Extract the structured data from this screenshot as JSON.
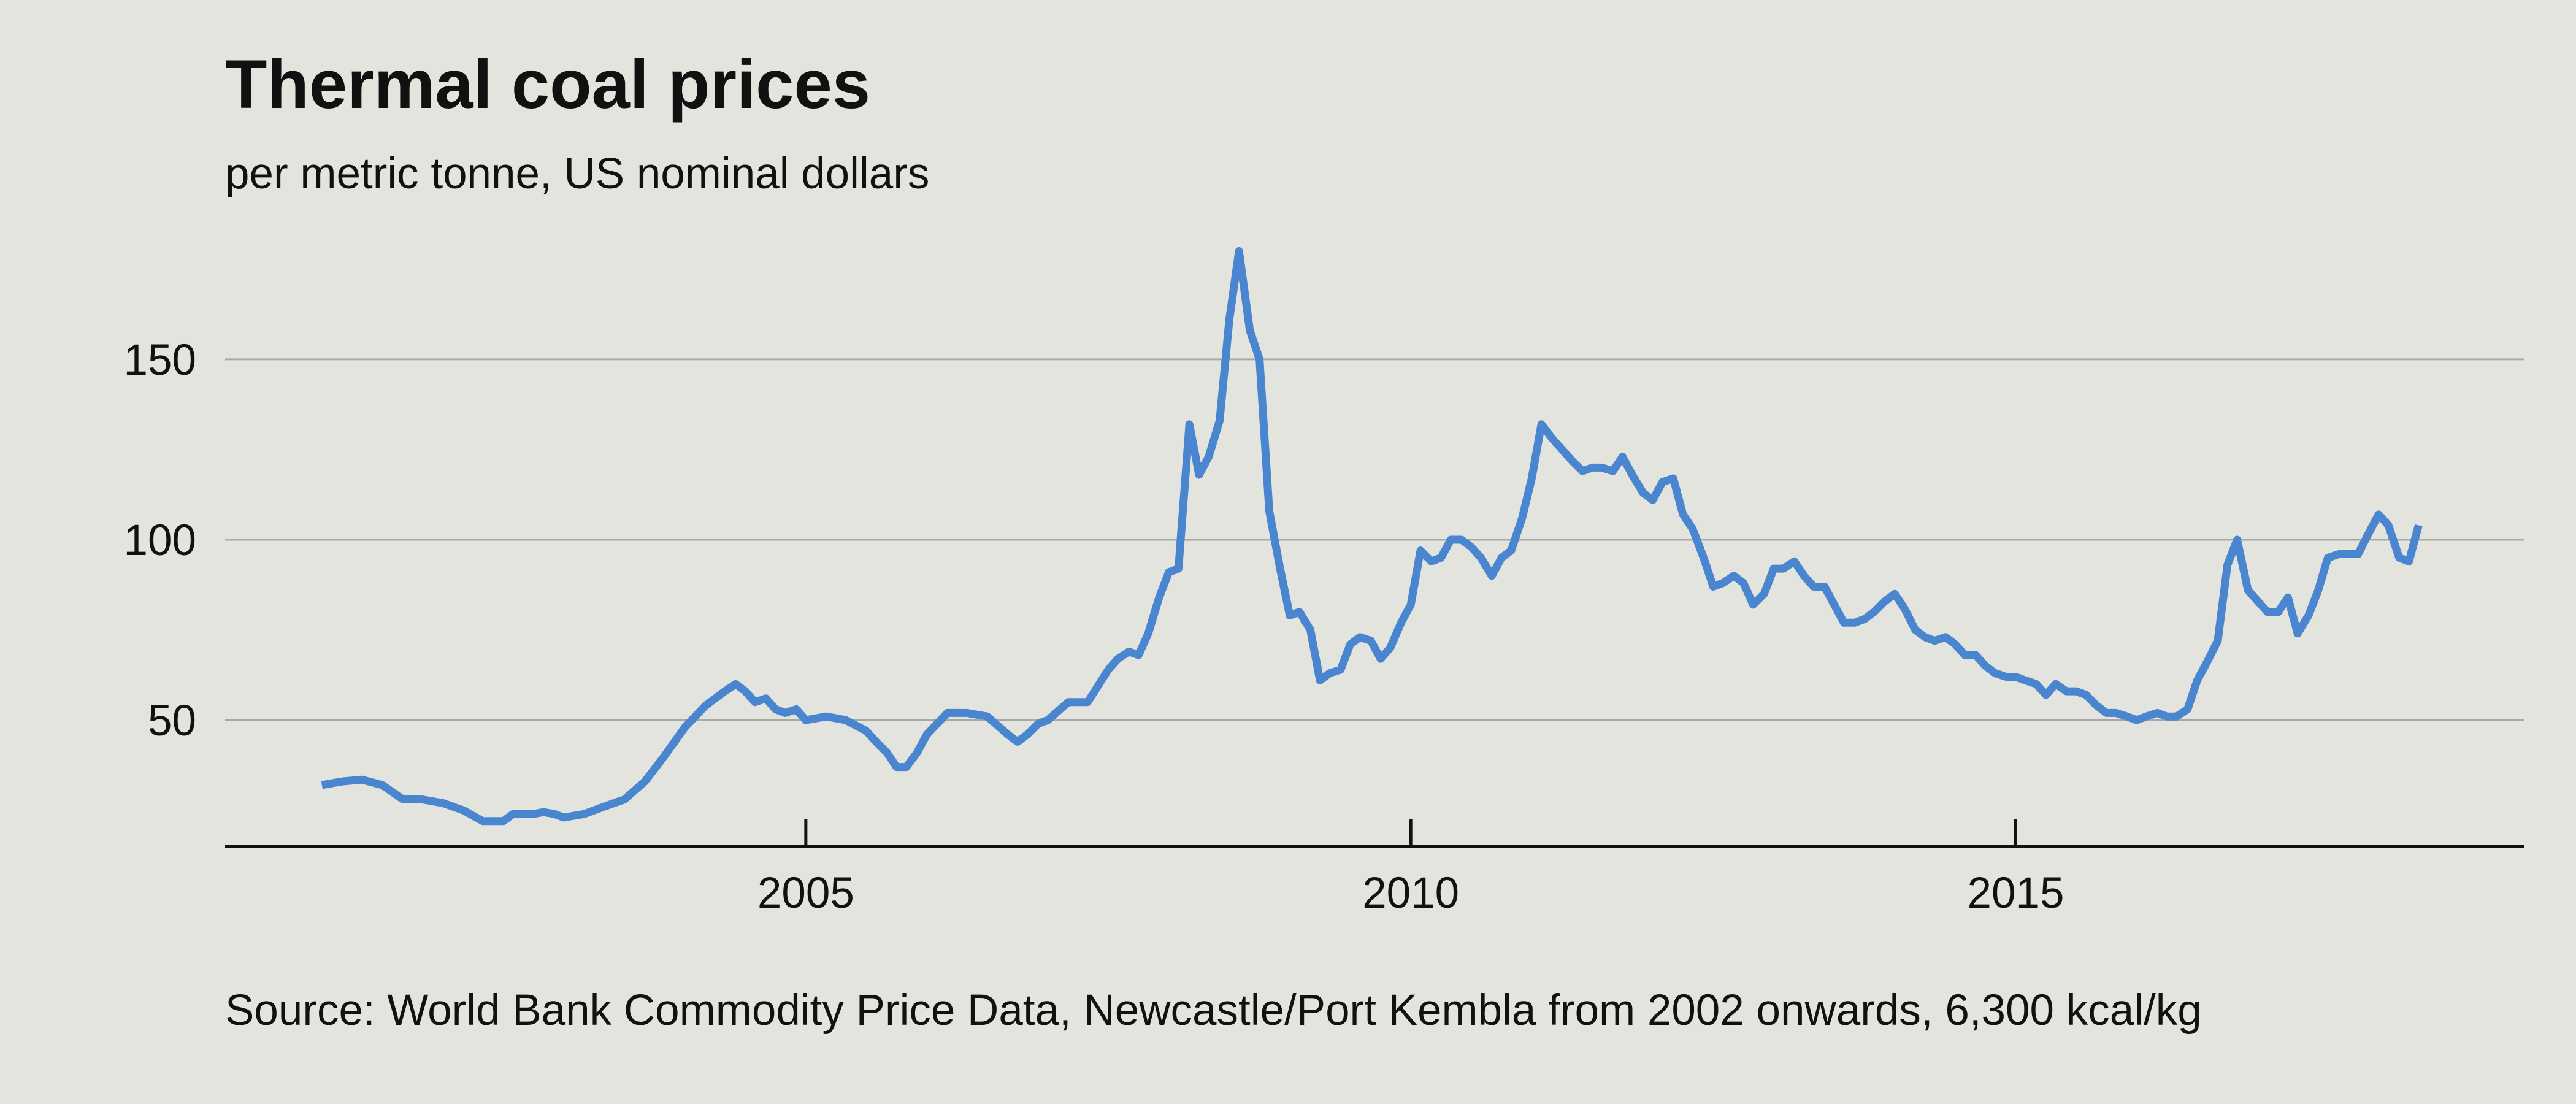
{
  "title": "Thermal coal prices",
  "subtitle": "per metric tonne, US nominal dollars",
  "source": "Source: World Bank Commodity Price Data, Newcastle/Port Kembla from 2002 onwards, 6,300 kcal/kg",
  "colors": {
    "background": "#e4e4df",
    "line": "#4a86cf",
    "grid": "#a8a8a8",
    "axis": "#111111",
    "text": "#111111"
  },
  "chart_data": {
    "type": "line",
    "title": "Thermal coal prices",
    "subtitle": "per metric tonne, US nominal dollars",
    "xlabel": "",
    "ylabel": "",
    "xlim": [
      2000.2,
      2019.2
    ],
    "ylim": [
      15,
      185
    ],
    "x_ticks": [
      2005,
      2010,
      2015
    ],
    "x_tick_labels": [
      "2005",
      "2010",
      "2015"
    ],
    "y_ticks": [
      50,
      100,
      150
    ],
    "y_tick_labels": [
      "50",
      "100",
      "150"
    ],
    "grid": "horizontal",
    "legend": "none",
    "series": [
      {
        "x": [
          2001.0,
          2001.17,
          2001.33,
          2001.5,
          2001.67,
          2001.83,
          2002.0,
          2002.17,
          2002.33,
          2002.5,
          2002.58,
          2002.67,
          2002.75,
          2002.83,
          2002.92,
          2003.0,
          2003.17,
          2003.33,
          2003.5,
          2003.67,
          2003.83,
          2004.0,
          2004.17,
          2004.33,
          2004.42,
          2004.5,
          2004.58,
          2004.67,
          2004.75,
          2004.83,
          2004.92,
          2005.0,
          2005.17,
          2005.33,
          2005.5,
          2005.58,
          2005.67,
          2005.75,
          2005.83,
          2005.92,
          2006.0,
          2006.17,
          2006.33,
          2006.5,
          2006.67,
          2006.75,
          2006.83,
          2006.92,
          2007.0,
          2007.17,
          2007.33,
          2007.5,
          2007.58,
          2007.67,
          2007.75,
          2007.83,
          2007.92,
          2008.0,
          2008.08,
          2008.17,
          2008.25,
          2008.33,
          2008.42,
          2008.5,
          2008.58,
          2008.67,
          2008.75,
          2008.83,
          2008.92,
          2009.0,
          2009.08,
          2009.17,
          2009.25,
          2009.33,
          2009.42,
          2009.5,
          2009.58,
          2009.67,
          2009.75,
          2009.83,
          2009.92,
          2010.0,
          2010.08,
          2010.17,
          2010.25,
          2010.33,
          2010.42,
          2010.5,
          2010.58,
          2010.67,
          2010.75,
          2010.83,
          2010.92,
          2011.0,
          2011.08,
          2011.17,
          2011.25,
          2011.33,
          2011.42,
          2011.5,
          2011.58,
          2011.67,
          2011.75,
          2011.83,
          2011.92,
          2012.0,
          2012.08,
          2012.17,
          2012.25,
          2012.33,
          2012.42,
          2012.5,
          2012.58,
          2012.67,
          2012.75,
          2012.83,
          2012.92,
          2013.0,
          2013.08,
          2013.17,
          2013.25,
          2013.33,
          2013.42,
          2013.5,
          2013.58,
          2013.67,
          2013.75,
          2013.83,
          2013.92,
          2014.0,
          2014.08,
          2014.17,
          2014.25,
          2014.33,
          2014.42,
          2014.5,
          2014.58,
          2014.67,
          2014.75,
          2014.83,
          2014.92,
          2015.0,
          2015.08,
          2015.17,
          2015.25,
          2015.33,
          2015.42,
          2015.5,
          2015.58,
          2015.67,
          2015.75,
          2015.83,
          2015.92,
          2016.0,
          2016.08,
          2016.17,
          2016.25,
          2016.33,
          2016.42,
          2016.5,
          2016.58,
          2016.67,
          2016.75,
          2016.83,
          2016.92,
          2017.0,
          2017.08,
          2017.17,
          2017.25,
          2017.33,
          2017.42,
          2017.5,
          2017.58,
          2017.67,
          2017.75,
          2017.83,
          2017.92,
          2018.0,
          2018.08,
          2018.17,
          2018.25,
          2018.33
        ],
        "values": [
          32,
          33,
          33.5,
          32,
          28,
          28,
          27,
          25,
          22,
          22,
          24,
          24,
          24,
          24.5,
          24,
          23,
          24,
          26,
          28,
          33,
          40,
          48,
          54,
          58,
          60,
          58,
          55,
          56,
          53,
          52,
          53,
          50,
          51,
          50,
          47,
          44,
          41,
          37,
          37,
          41,
          46,
          52,
          52,
          51,
          46,
          44,
          46,
          49,
          50,
          55,
          55,
          64,
          67,
          69,
          68,
          74,
          84,
          91,
          92,
          132,
          118,
          123,
          133,
          161,
          180,
          158,
          150,
          108,
          92,
          79,
          80,
          75,
          61,
          63,
          64,
          71,
          73,
          72,
          67,
          70,
          77,
          82,
          97,
          94,
          95,
          100,
          100,
          98,
          95,
          90,
          95,
          97,
          106,
          117,
          132,
          128,
          125,
          122,
          119,
          120,
          120,
          119,
          123,
          118,
          113,
          111,
          116,
          117,
          107,
          103,
          95,
          87,
          88,
          90,
          88,
          82,
          85,
          92,
          92,
          94,
          90,
          87,
          87,
          82,
          77,
          77,
          78,
          80,
          83,
          85,
          81,
          75,
          73,
          72,
          73,
          71,
          68,
          68,
          65,
          63,
          62,
          62,
          61,
          60,
          57,
          60,
          58,
          58,
          57,
          54,
          52,
          52,
          51,
          50,
          51,
          52,
          51,
          51,
          53,
          61,
          66,
          72,
          93,
          100,
          86,
          83,
          80,
          80,
          84,
          74,
          79,
          86,
          95,
          96,
          96,
          96,
          102,
          107,
          104,
          95,
          94,
          104
        ]
      }
    ]
  }
}
